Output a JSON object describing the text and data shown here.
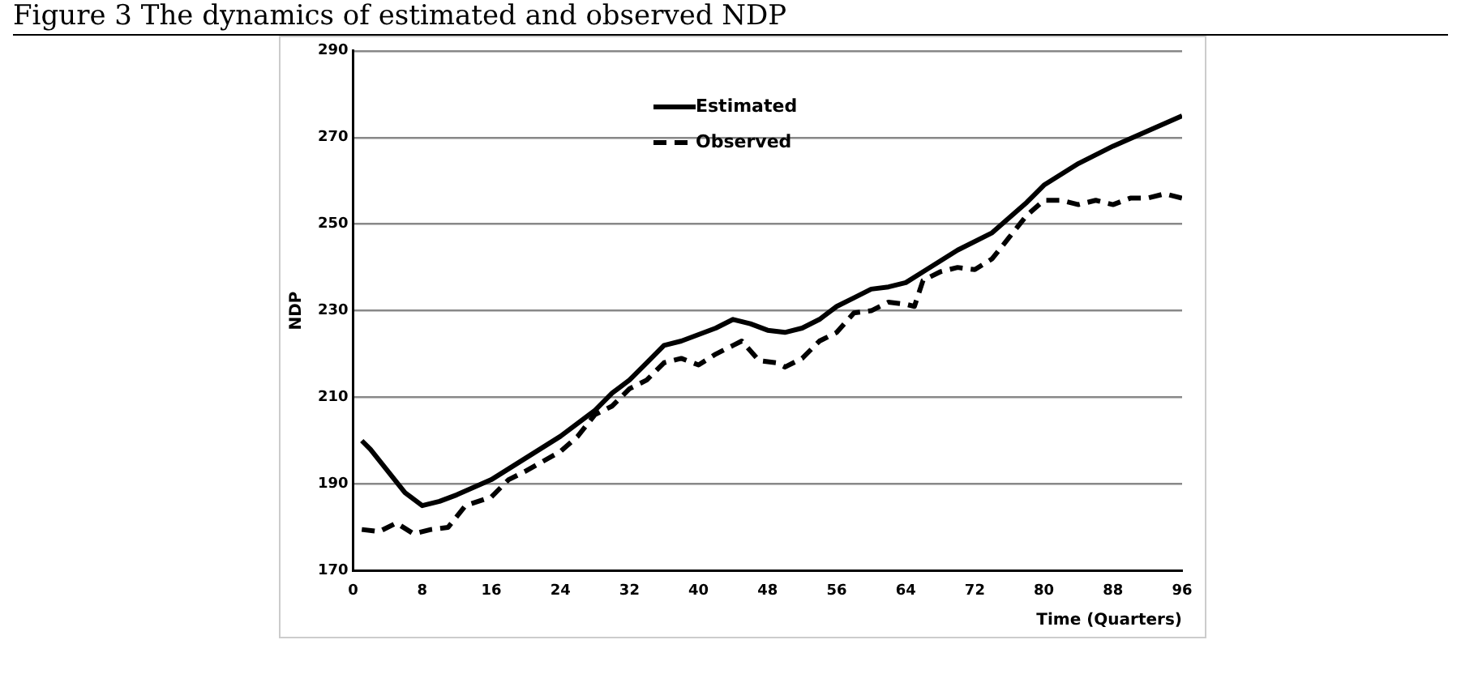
{
  "chart_data": {
    "type": "line",
    "title": "Figure 3 The dynamics of estimated and observed NDP",
    "xlabel": "Time (Quarters)",
    "ylabel": "NDP",
    "xlim": [
      0,
      96
    ],
    "xticks": [
      0,
      8,
      16,
      24,
      32,
      40,
      48,
      56,
      64,
      72,
      80,
      88,
      96
    ],
    "ylim": [
      170,
      290
    ],
    "yticks": [
      170,
      190,
      210,
      230,
      250,
      270,
      290
    ],
    "grid": "y",
    "legend": "top",
    "marker": "none",
    "series": [
      {
        "name": "Estimated",
        "color": "#000000",
        "line_style": "solid",
        "x": [
          1,
          2,
          4,
          6,
          8,
          10,
          12,
          16,
          20,
          24,
          28,
          30,
          32,
          34,
          36,
          38,
          40,
          42,
          44,
          46,
          48,
          50,
          52,
          54,
          56,
          58,
          60,
          62,
          64,
          66,
          70,
          74,
          78,
          80,
          84,
          88,
          92,
          96
        ],
        "values": [
          200,
          198,
          193,
          188,
          185,
          186,
          187.5,
          191,
          196,
          201,
          207,
          211,
          214,
          218,
          222,
          223,
          224.5,
          226,
          228,
          227,
          225.5,
          225,
          226,
          228,
          231,
          233,
          235,
          235.5,
          236.5,
          239,
          244,
          248,
          255,
          259,
          264,
          268,
          271.5,
          275
        ]
      },
      {
        "name": "Observed",
        "color": "#000000",
        "line_style": "dashed",
        "x": [
          1,
          3,
          5,
          7,
          9,
          11,
          13,
          16,
          18,
          20,
          24,
          26,
          28,
          30,
          32,
          34,
          36,
          38,
          40,
          42,
          44,
          45,
          47,
          49,
          50,
          52,
          54,
          56,
          58,
          60,
          62,
          64,
          65,
          66,
          68,
          70,
          72,
          74,
          76,
          78,
          80,
          82,
          84,
          86,
          88,
          90,
          92,
          94,
          96
        ],
        "values": [
          179.5,
          179,
          181,
          178.5,
          179.5,
          180,
          185,
          187,
          191,
          193,
          197.5,
          201,
          206,
          208,
          212,
          214,
          218,
          219,
          217.5,
          220,
          222,
          223,
          218.5,
          218,
          217,
          219,
          223,
          225,
          229.5,
          230,
          232,
          231.5,
          231,
          237,
          239,
          240,
          239.5,
          242,
          247,
          252,
          255.5,
          255.5,
          254.5,
          255.5,
          254.5,
          256,
          256,
          257,
          256
        ]
      }
    ]
  }
}
